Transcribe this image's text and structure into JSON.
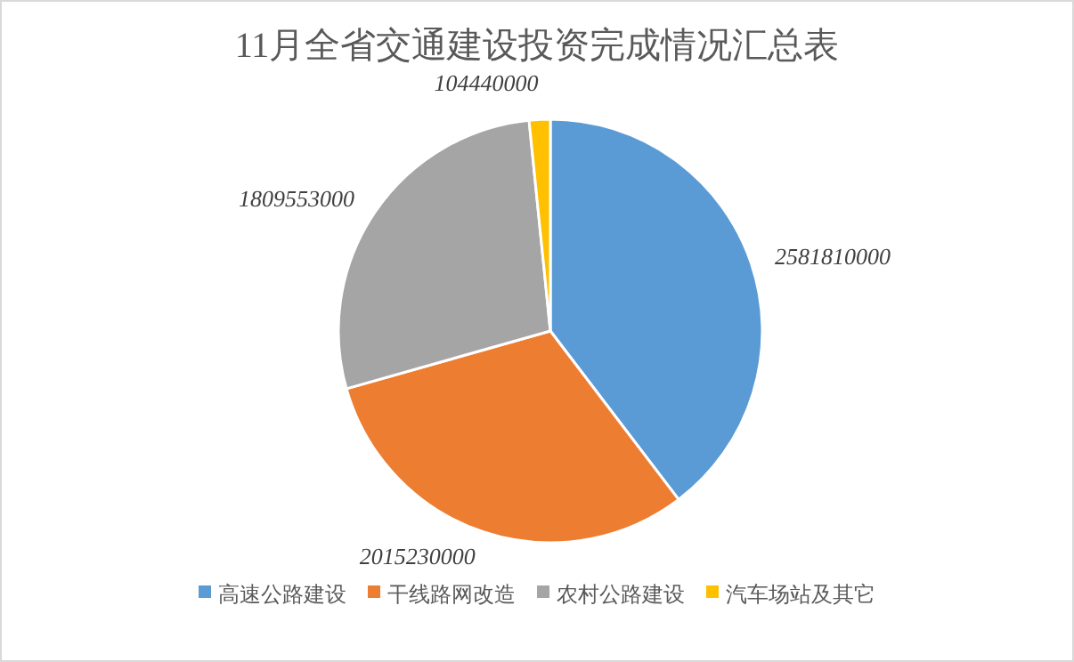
{
  "chart_data": {
    "type": "pie",
    "title": "11月全省交通建设投资完成情况汇总表",
    "categories": [
      "高速公路建设",
      "干线路网改造",
      "农村公路建设",
      "汽车场站及其它"
    ],
    "values": [
      2581810000,
      2015230000,
      1809553000,
      104440000
    ],
    "colors": [
      "#5b9bd5",
      "#ed7d31",
      "#a5a5a5",
      "#ffc000"
    ],
    "data_labels": true,
    "legend": "bottom"
  }
}
